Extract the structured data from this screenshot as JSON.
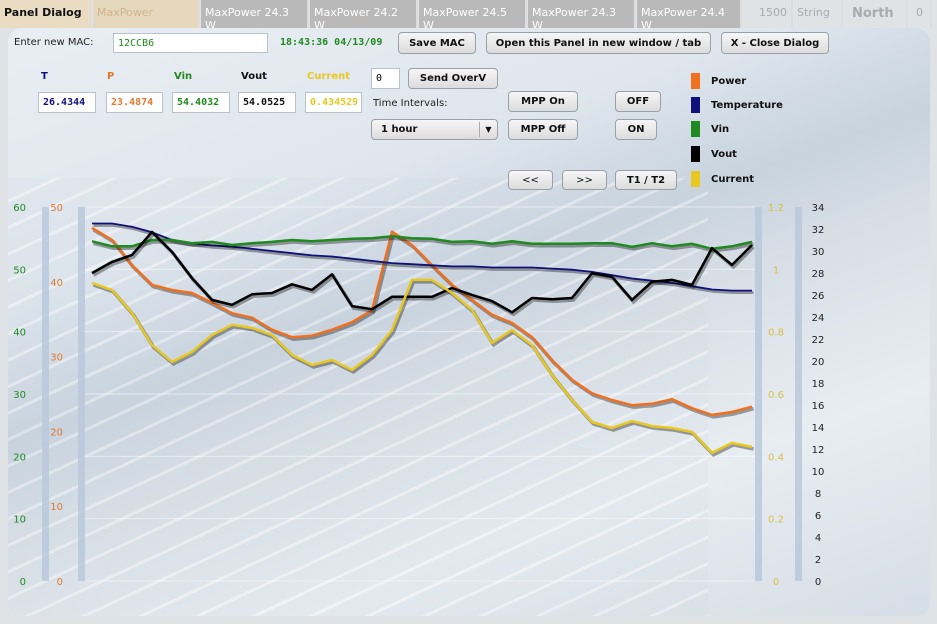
{
  "background_table": {
    "cells": [
      "MaxPower",
      "MaxPower 24.3 W",
      "MaxPower 24.2 W",
      "MaxPower 24.5 W",
      "MaxPower 24.3 W",
      "MaxPower 24.4 W",
      "1500",
      "String",
      "North",
      "0"
    ]
  },
  "dialog": {
    "title": "Panel Dialog",
    "mac_label": "Enter new MAC:",
    "mac_value": "12CCB6",
    "timestamp": "18:43:36 04/13/09",
    "save_mac": "Save MAC",
    "open_new": "Open this Panel in new window / tab",
    "close": "X - Close Dialog"
  },
  "readings": {
    "headers": {
      "t": "T",
      "p": "P",
      "vin": "Vin",
      "vout": "Vout",
      "current": "Current"
    },
    "values": {
      "t": "26.4344",
      "p": "23.4874",
      "vin": "54.4032",
      "vout": "54.0525",
      "current": "0.434529"
    }
  },
  "controls": {
    "overv_value": "0",
    "send_overv": "Send OverV",
    "time_intervals_label": "Time Intervals:",
    "interval_selected": "1 hour",
    "mpp_on": "MPP On",
    "mpp_off": "MPP Off",
    "off": "OFF",
    "on": "ON",
    "prev": "<<",
    "next": ">>",
    "t1t2": "T1 / T2"
  },
  "colors": {
    "power": "#f07020",
    "temperature": "#10107a",
    "vin": "#1f8a1f",
    "vout": "#000000",
    "current": "#e8c820"
  },
  "chart_data": {
    "type": "line",
    "legend": [
      "Power",
      "Temperature",
      "Vin",
      "Vout",
      "Current"
    ],
    "legend_placement": "top-right",
    "axes": [
      {
        "id": "vin",
        "side": "left-outer",
        "ylim": [
          0,
          60
        ],
        "ticks": [
          "0",
          "10",
          "20",
          "30",
          "40",
          "50",
          "60"
        ],
        "color": "#1f8a1f"
      },
      {
        "id": "power",
        "side": "left-inner",
        "ylim": [
          0,
          50
        ],
        "ticks": [
          "0",
          "10",
          "20",
          "30",
          "40",
          "50"
        ],
        "color": "#e07a30"
      },
      {
        "id": "current",
        "side": "right-inner",
        "ylim": [
          0,
          1.2
        ],
        "ticks": [
          "0",
          "0.2",
          "0.4",
          "0.6",
          "0.8",
          "1",
          "1.2"
        ],
        "color": "#d8c040"
      },
      {
        "id": "temp",
        "side": "right-outer",
        "ylim": [
          0,
          34
        ],
        "ticks": [
          "0",
          "2",
          "4",
          "6",
          "8",
          "10",
          "12",
          "14",
          "16",
          "18",
          "20",
          "22",
          "24",
          "26",
          "28",
          "30",
          "32",
          "34"
        ],
        "color": "#222222"
      }
    ],
    "series": [
      {
        "name": "Power",
        "axis": "power",
        "color": "#f07020",
        "values": [
          47.2,
          45.6,
          42.2,
          39.6,
          38.9,
          38.5,
          37.2,
          35.8,
          35.2,
          33.6,
          32.6,
          32.8,
          33.6,
          34.6,
          36.2,
          46.7,
          44.9,
          42.2,
          39.6,
          37.6,
          35.6,
          34.5,
          32.6,
          29.5,
          26.9,
          25.1,
          24.2,
          23.5,
          23.7,
          24.3,
          23.1,
          22.2,
          22.6,
          23.3
        ]
      },
      {
        "name": "Temperature",
        "axis": "temp",
        "color": "#10107a",
        "values": [
          32.5,
          32.5,
          32.2,
          31.7,
          31.0,
          30.7,
          30.5,
          30.4,
          30.2,
          30.0,
          29.8,
          29.6,
          29.5,
          29.3,
          29.1,
          28.9,
          28.8,
          28.7,
          28.6,
          28.6,
          28.5,
          28.5,
          28.5,
          28.4,
          28.3,
          28.1,
          27.8,
          27.5,
          27.3,
          27.1,
          26.8,
          26.5,
          26.4,
          26.4
        ]
      },
      {
        "name": "Vin",
        "axis": "vin",
        "color": "#1f8a1f",
        "values": [
          54.5,
          53.7,
          53.7,
          54.7,
          54.7,
          54.2,
          54.4,
          53.9,
          54.2,
          54.4,
          54.7,
          54.5,
          54.7,
          54.9,
          55.0,
          55.3,
          55.0,
          54.9,
          54.4,
          54.5,
          54.1,
          54.5,
          54.1,
          54.1,
          54.1,
          54.2,
          54.2,
          53.6,
          54.2,
          53.7,
          54.1,
          53.3,
          53.7,
          54.4
        ]
      },
      {
        "name": "Vout",
        "axis": "vin",
        "color": "#000000",
        "values": [
          49.4,
          51.2,
          52.3,
          56.0,
          52.8,
          48.6,
          45.1,
          44.3,
          46.0,
          46.2,
          47.6,
          46.7,
          49.2,
          44.1,
          43.6,
          45.6,
          45.6,
          45.6,
          47.0,
          45.9,
          44.9,
          43.1,
          45.4,
          45.2,
          45.4,
          49.4,
          48.8,
          45.1,
          48.0,
          48.3,
          47.5,
          53.4,
          50.7,
          53.9
        ]
      },
      {
        "name": "Current",
        "axis": "current",
        "color": "#e8c820",
        "values": [
          0.956,
          0.934,
          0.86,
          0.757,
          0.703,
          0.735,
          0.789,
          0.822,
          0.812,
          0.789,
          0.725,
          0.693,
          0.709,
          0.677,
          0.725,
          0.805,
          0.966,
          0.966,
          0.924,
          0.87,
          0.764,
          0.805,
          0.757,
          0.661,
          0.581,
          0.51,
          0.491,
          0.513,
          0.497,
          0.491,
          0.478,
          0.411,
          0.443,
          0.43
        ]
      }
    ]
  }
}
